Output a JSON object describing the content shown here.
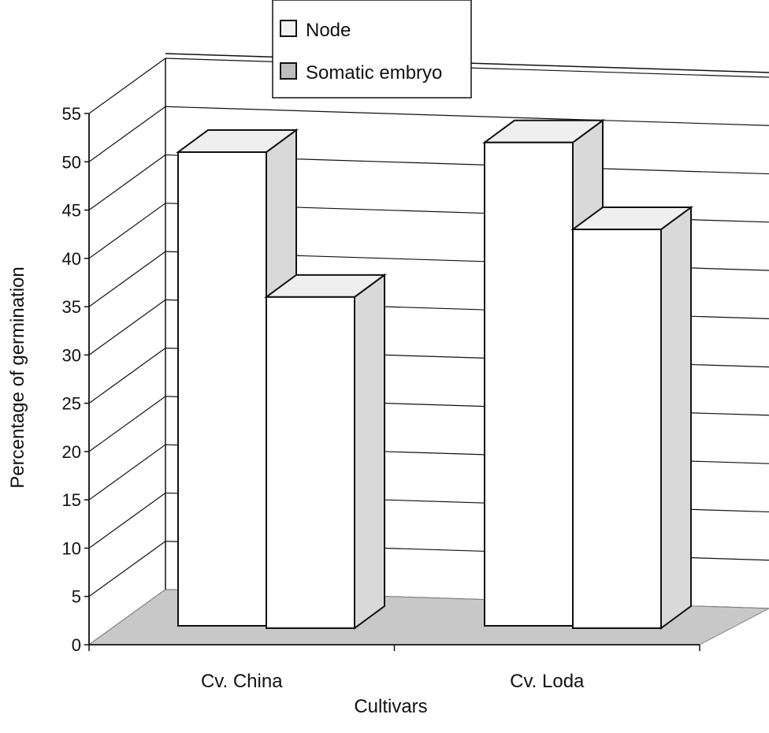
{
  "chart_data": {
    "type": "bar",
    "subtype": "3d-clustered-column",
    "title": "",
    "xlabel": "Cultivars",
    "ylabel": "Percentage of germination",
    "categories": [
      "Cv. China",
      "Cv. Loda"
    ],
    "series": [
      {
        "name": "Node",
        "values": [
          51,
          52
        ]
      },
      {
        "name": "Somatic embryo",
        "values": [
          36,
          43
        ]
      }
    ],
    "ylim": [
      0,
      55
    ],
    "yticks": [
      "0",
      "5",
      "10",
      "15",
      "20",
      "25",
      "30",
      "35",
      "40",
      "45",
      "50",
      "55"
    ],
    "grid": true,
    "legend": "top-center",
    "colors": {
      "bar_front": "#ffffff",
      "bar_side": "#d9d9d9",
      "bar_top": "#efefef",
      "floor": "#c8c8c8",
      "line": "#111111"
    }
  }
}
